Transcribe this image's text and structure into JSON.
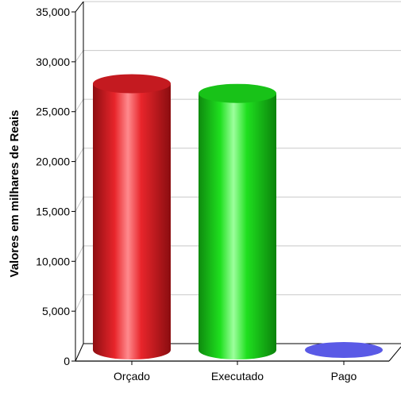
{
  "chart_data": {
    "type": "bar",
    "title": "",
    "xlabel": "",
    "ylabel": "Valores em milhares de Reais",
    "categories": [
      "Orçado",
      "Executado",
      "Pago"
    ],
    "values": [
      27500,
      26500,
      0
    ],
    "ylim": [
      0,
      35000
    ],
    "yticks": [
      0,
      5000,
      10000,
      15000,
      20000,
      25000,
      30000,
      35000
    ],
    "ytick_labels": [
      "0",
      "5,000",
      "10,000",
      "15,000",
      "20,000",
      "25,000",
      "30,000",
      "35,000"
    ],
    "grid": true,
    "legend": "none",
    "colors": {
      "Orçado": "#e8252b",
      "Executado": "#1fe01f",
      "Pago": "#5a5ae6"
    }
  }
}
